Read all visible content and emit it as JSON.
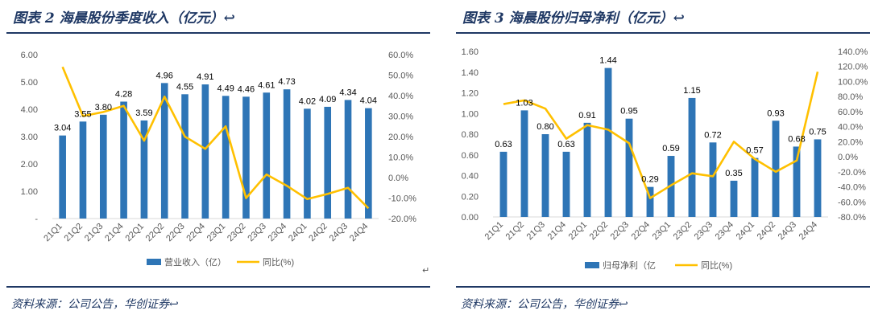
{
  "left": {
    "title": "图表 2   海晨股份季度收入（亿元）↩",
    "source": "资料来源：公司公告，华创证券↩",
    "stray_mark": "↵"
  },
  "right": {
    "title": "图表 3   海晨股份归母净利（亿元）↩",
    "source": "资料来源：公司公告，华创证券↩"
  },
  "colors": {
    "bar": "#2e75b6",
    "line": "#ffc000",
    "rule": "#1f3864",
    "tick": "#595959"
  },
  "chart_data": [
    {
      "type": "bar",
      "categories": [
        "21Q1",
        "21Q2",
        "21Q3",
        "21Q4",
        "22Q1",
        "22Q2",
        "22Q3",
        "22Q4",
        "23Q1",
        "23Q2",
        "23Q3",
        "23Q4",
        "24Q1",
        "24Q2",
        "24Q3",
        "24Q4"
      ],
      "series": [
        {
          "name": "营业收入（亿）",
          "type": "bar",
          "axis": "left",
          "values": [
            3.04,
            3.55,
            3.8,
            4.28,
            3.59,
            4.96,
            4.55,
            4.91,
            4.49,
            4.46,
            4.61,
            4.73,
            4.02,
            4.09,
            4.34,
            4.04
          ],
          "labels": [
            "3.04",
            "3.55",
            "3.80",
            "4.28",
            "3.59",
            "4.96",
            "4.55",
            "4.91",
            "4.49",
            "4.46",
            "4.61",
            "4.73",
            "4.02",
            "4.09",
            "4.34",
            "4.04"
          ]
        },
        {
          "name": "同比(%)",
          "type": "line",
          "axis": "right",
          "values": [
            54.0,
            30.0,
            32.0,
            35.0,
            18.0,
            39.5,
            20.0,
            14.0,
            25.0,
            -10.0,
            1.5,
            -4.0,
            -10.5,
            -8.0,
            -5.0,
            -15.0
          ]
        }
      ],
      "ylim": [
        0,
        6
      ],
      "yticks": [
        "-",
        "1.00",
        "2.00",
        "3.00",
        "4.00",
        "5.00",
        "6.00"
      ],
      "y2lim": [
        -20,
        60
      ],
      "y2ticks": [
        "-20.0%",
        "-10.0%",
        "0.0%",
        "10.0%",
        "20.0%",
        "30.0%",
        "40.0%",
        "50.0%",
        "60.0%"
      ],
      "grid": false,
      "legend": "bottom"
    },
    {
      "type": "bar",
      "categories": [
        "21Q1",
        "21Q2",
        "21Q3",
        "21Q4",
        "22Q1",
        "22Q2",
        "22Q3",
        "22Q4",
        "23Q1",
        "23Q2",
        "23Q3",
        "23Q4",
        "24Q1",
        "24Q2",
        "24Q3",
        "24Q4"
      ],
      "series": [
        {
          "name": "归母净利（亿",
          "type": "bar",
          "axis": "left",
          "values": [
            0.63,
            1.03,
            0.8,
            0.63,
            0.91,
            1.44,
            0.95,
            0.29,
            0.59,
            1.15,
            0.72,
            0.35,
            0.57,
            0.93,
            0.68,
            0.75
          ],
          "labels": [
            "0.63",
            "1.03",
            "0.80",
            "0.63",
            "0.91",
            "1.44",
            "0.95",
            "0.29",
            "0.59",
            "1.15",
            "0.72",
            "0.35",
            "0.57",
            "0.93",
            "0.68",
            "0.75"
          ]
        },
        {
          "name": "同比(%)",
          "type": "line",
          "axis": "right",
          "values": [
            70,
            75,
            64,
            24,
            42,
            36,
            18,
            -55,
            -38,
            -22,
            -26,
            20,
            -3,
            -20,
            -5,
            113
          ]
        }
      ],
      "ylim": [
        0,
        1.6
      ],
      "yticks": [
        "0.00",
        "0.20",
        "0.40",
        "0.60",
        "0.80",
        "1.00",
        "1.20",
        "1.40",
        "1.60"
      ],
      "y2lim": [
        -80,
        140
      ],
      "y2ticks": [
        "-80.0%",
        "-60.0%",
        "-40.0%",
        "-20.0%",
        "0.0%",
        "20.0%",
        "40.0%",
        "60.0%",
        "80.0%",
        "100.0%",
        "120.0%",
        "140.0%"
      ],
      "grid": false,
      "legend": "bottom"
    }
  ]
}
